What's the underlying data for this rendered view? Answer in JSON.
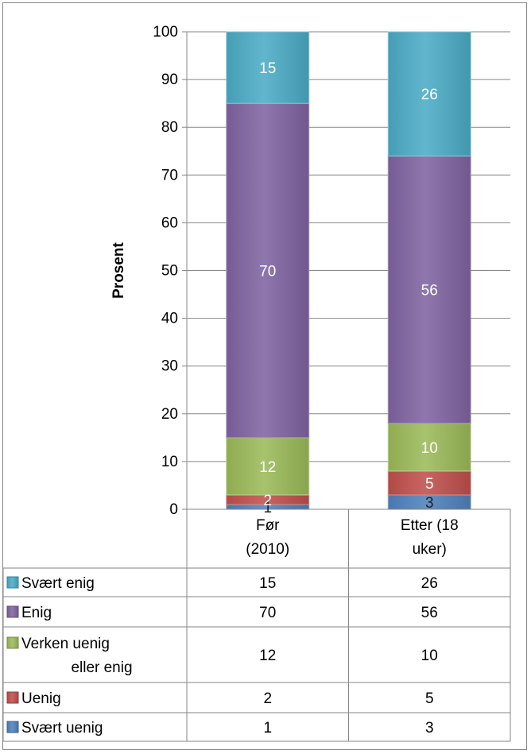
{
  "chart_data": {
    "type": "bar",
    "stacked": true,
    "categories": [
      "Før (2010)",
      "Etter (18 uker)"
    ],
    "category_lines": [
      [
        "Før",
        "(2010)"
      ],
      [
        "Etter (18",
        "uker)"
      ]
    ],
    "ylabel": "Prosent",
    "ylim": [
      0,
      100
    ],
    "yticks": [
      0,
      10,
      20,
      30,
      40,
      50,
      60,
      70,
      80,
      90,
      100
    ],
    "grid": true,
    "legend_placement": "data-table-below",
    "series": [
      {
        "name": "Svært uenig",
        "values": [
          1,
          3
        ],
        "color": "#4f81bd"
      },
      {
        "name": "Uenig",
        "values": [
          2,
          5
        ],
        "color": "#c0504d"
      },
      {
        "name": "Verken uenig eller enig",
        "name_lines": [
          "Verken uenig",
          "eller enig"
        ],
        "values": [
          12,
          10
        ],
        "color": "#9bbb59"
      },
      {
        "name": "Enig",
        "values": [
          70,
          56
        ],
        "color": "#8064a2"
      },
      {
        "name": "Svært enig",
        "values": [
          15,
          26
        ],
        "color": "#4bacc6"
      }
    ]
  }
}
